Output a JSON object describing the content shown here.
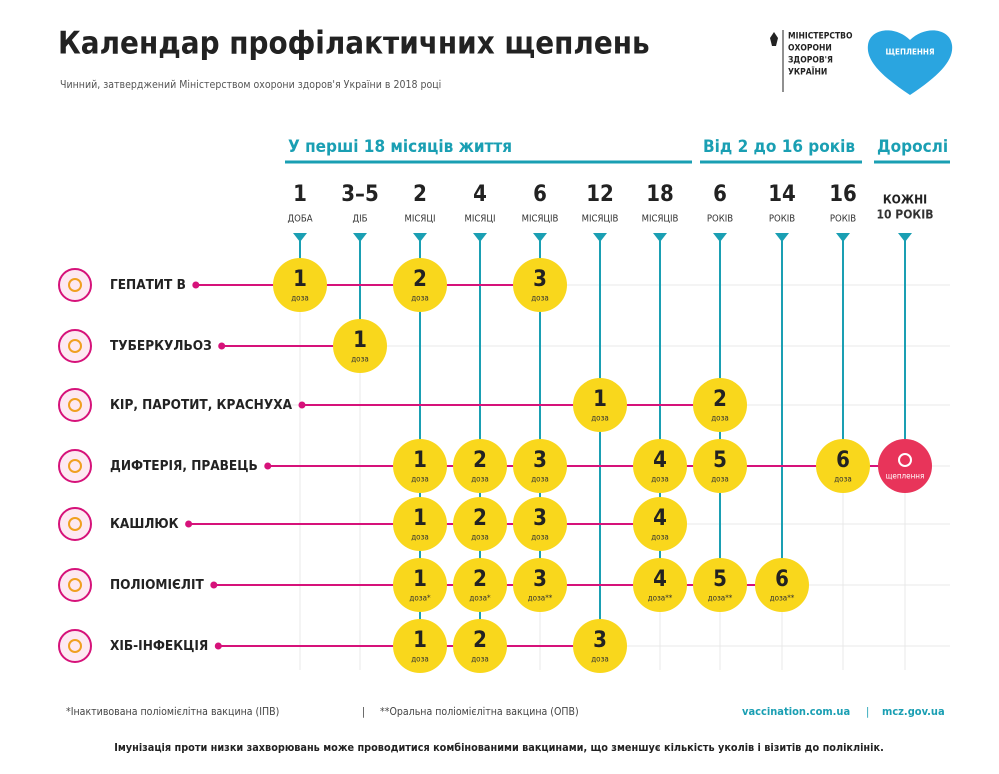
{
  "header": {
    "title": "Календар профілактичних щеплень",
    "subtitle": "Чинний, затверджений Міністерством охорони здоров'я України в 2018 році",
    "ministry": [
      "МІНІСТЕРСТВО",
      "ОХОРОНИ",
      "ЗДОРОВ'Я",
      "УКРАЇНИ"
    ],
    "badge": "ЩЕПЛЕННЯ"
  },
  "periods": [
    "У перші 18 місяців життя",
    "Від 2 до 16 років",
    "Дорослі"
  ],
  "columns": [
    {
      "num": "1",
      "unit": "ДОБА"
    },
    {
      "num": "3–5",
      "unit": "ДІБ"
    },
    {
      "num": "2",
      "unit": "МІСЯЦІ"
    },
    {
      "num": "4",
      "unit": "МІСЯЦІ"
    },
    {
      "num": "6",
      "unit": "МІСЯЦІВ"
    },
    {
      "num": "12",
      "unit": "МІСЯЦІВ"
    },
    {
      "num": "18",
      "unit": "МІСЯЦІВ"
    },
    {
      "num": "6",
      "unit": "РОКІВ"
    },
    {
      "num": "14",
      "unit": "РОКІВ"
    },
    {
      "num": "16",
      "unit": "РОКІВ"
    },
    {
      "num": "КОЖНІ",
      "unit": "10 РОКІВ"
    }
  ],
  "rows": [
    {
      "name": "ГЕПАТИТ В",
      "cells": [
        {
          "n": "1",
          "t": "доза"
        },
        null,
        {
          "n": "2",
          "t": "доза"
        },
        null,
        {
          "n": "3",
          "t": "доза"
        },
        null,
        null,
        null,
        null,
        null,
        null
      ]
    },
    {
      "name": "ТУБЕРКУЛЬОЗ",
      "cells": [
        null,
        {
          "n": "1",
          "t": "доза"
        },
        null,
        null,
        null,
        null,
        null,
        null,
        null,
        null,
        null
      ]
    },
    {
      "name": "КІР, ПАРОТИТ, КРАСНУХА",
      "cells": [
        null,
        null,
        null,
        null,
        null,
        {
          "n": "1",
          "t": "доза"
        },
        null,
        {
          "n": "2",
          "t": "доза"
        },
        null,
        null,
        null
      ]
    },
    {
      "name": "ДИФТЕРІЯ, ПРАВЕЦЬ",
      "cells": [
        null,
        null,
        {
          "n": "1",
          "t": "доза"
        },
        {
          "n": "2",
          "t": "доза"
        },
        {
          "n": "3",
          "t": "доза"
        },
        null,
        {
          "n": "4",
          "t": "доза"
        },
        {
          "n": "5",
          "t": "доза"
        },
        null,
        {
          "n": "6",
          "t": "доза"
        },
        {
          "t": "щеплення"
        }
      ]
    },
    {
      "name": "КАШЛЮК",
      "cells": [
        null,
        null,
        {
          "n": "1",
          "t": "доза"
        },
        {
          "n": "2",
          "t": "доза"
        },
        {
          "n": "3",
          "t": "доза"
        },
        null,
        {
          "n": "4",
          "t": "доза"
        },
        null,
        null,
        null,
        null
      ]
    },
    {
      "name": "ПОЛІОМІЄЛІТ",
      "cells": [
        null,
        null,
        {
          "n": "1",
          "t": "доза*"
        },
        {
          "n": "2",
          "t": "доза*"
        },
        {
          "n": "3",
          "t": "доза**"
        },
        null,
        {
          "n": "4",
          "t": "доза**"
        },
        {
          "n": "5",
          "t": "доза**"
        },
        {
          "n": "6",
          "t": "доза**"
        },
        null,
        null
      ]
    },
    {
      "name": "ХІБ-ІНФЕКЦІЯ",
      "cells": [
        null,
        null,
        {
          "n": "1",
          "t": "доза"
        },
        {
          "n": "2",
          "t": "доза"
        },
        null,
        {
          "n": "3",
          "t": "доза"
        },
        null,
        null,
        null,
        null,
        null
      ]
    }
  ],
  "footnotes": [
    "*Інактивована поліомієлітна вакцина (ІПВ)",
    "**Оральна поліомієлітна вакцина (ОПВ)"
  ],
  "links": [
    "vaccination.com.ua",
    "mcz.gov.ua"
  ],
  "footer": "Імунізація проти низки захворювань може проводитися комбінованими вакцинами, що зменшує кількість уколів і візитів до поліклінік."
}
